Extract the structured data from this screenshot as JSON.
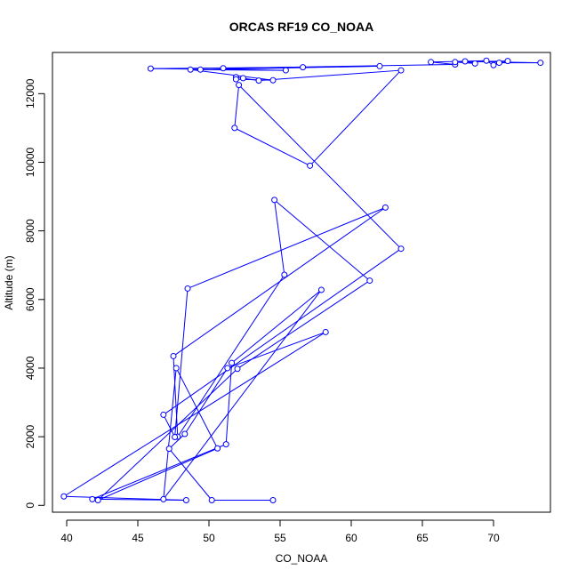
{
  "chart_data": {
    "type": "line",
    "title": "ORCAS RF19 CO_NOAA",
    "xlabel": "CO_NOAA",
    "ylabel": "Altitude (m)",
    "xlim": [
      39.0,
      74.0
    ],
    "ylim": [
      -200,
      13200
    ],
    "xticks": [
      40,
      45,
      50,
      55,
      60,
      65,
      70
    ],
    "yticks": [
      0,
      2000,
      4000,
      6000,
      8000,
      10000,
      12000
    ],
    "grid": false,
    "legend": "none",
    "colors": {
      "series": "#0000ff",
      "axes": "#000000",
      "background": "#ffffff"
    },
    "series": [
      {
        "markers": "open-circle",
        "points": [
          [
            54.5,
            150
          ],
          [
            50.2,
            150
          ],
          [
            47.2,
            1650
          ],
          [
            48.3,
            2080
          ],
          [
            51.3,
            4000
          ],
          [
            58.2,
            5050
          ],
          [
            39.8,
            260
          ],
          [
            48.4,
            150
          ],
          [
            41.8,
            180
          ],
          [
            51.2,
            1780
          ],
          [
            51.6,
            4150
          ],
          [
            57.9,
            6280
          ],
          [
            46.8,
            180
          ],
          [
            47.7,
            4000
          ],
          [
            50.6,
            1660
          ],
          [
            42.2,
            150
          ],
          [
            52.0,
            3980
          ],
          [
            61.3,
            6550
          ],
          [
            54.6,
            8900
          ],
          [
            55.3,
            6720
          ],
          [
            47.8,
            2000
          ],
          [
            47.5,
            4350
          ],
          [
            62.4,
            8680
          ],
          [
            48.5,
            6320
          ],
          [
            47.6,
            1990
          ],
          [
            46.8,
            2640
          ],
          [
            63.5,
            7480
          ],
          [
            52.1,
            12250
          ],
          [
            51.8,
            11000
          ],
          [
            57.1,
            9900
          ],
          [
            63.5,
            12680
          ],
          [
            53.5,
            12380
          ],
          [
            52.4,
            12450
          ],
          [
            51.9,
            12480
          ],
          [
            51.9,
            12420
          ],
          [
            54.5,
            12390
          ],
          [
            48.7,
            12700
          ],
          [
            55.4,
            12680
          ],
          [
            45.9,
            12730
          ],
          [
            56.6,
            12770
          ],
          [
            49.4,
            12700
          ],
          [
            62.0,
            12800
          ],
          [
            51.0,
            12740
          ],
          [
            67.3,
            12850
          ],
          [
            65.6,
            12920
          ],
          [
            69.5,
            12960
          ],
          [
            70.0,
            12830
          ],
          [
            71.0,
            12950
          ],
          [
            67.3,
            12920
          ],
          [
            68.7,
            12880
          ],
          [
            68.0,
            12940
          ],
          [
            73.3,
            12900
          ],
          [
            70.4,
            12900
          ]
        ]
      }
    ]
  }
}
